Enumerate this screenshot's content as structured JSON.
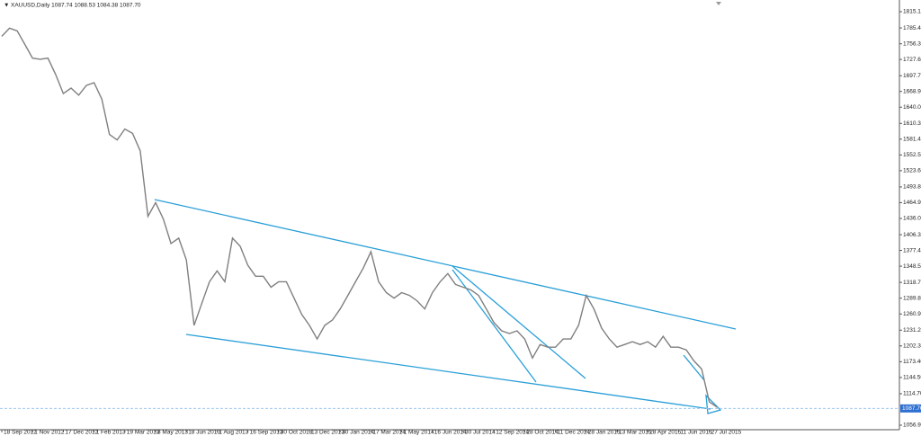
{
  "chart_data": {
    "type": "line",
    "title": "XAUUSD,Daily  1087.74 1088.53 1084.38 1087.70",
    "categories": [
      "18 Sep 2012",
      null,
      null,
      null,
      "1 Nov 2012",
      null,
      null,
      null,
      "17 Dec 2012",
      null,
      null,
      null,
      "1 Feb 2013",
      null,
      null,
      null,
      "19 Mar 2013",
      null,
      null,
      null,
      "3 May 2013",
      null,
      null,
      null,
      "18 Jun 2013",
      null,
      null,
      null,
      "1 Aug 2013",
      null,
      null,
      null,
      "16 Sep 2013",
      null,
      null,
      null,
      "30 Oct 2013",
      null,
      null,
      null,
      "13 Dec 2013",
      null,
      null,
      null,
      "30 Jan 2014",
      null,
      null,
      null,
      "17 Mar 2014",
      null,
      null,
      null,
      "1 May 2014",
      null,
      null,
      null,
      "16 Jun 2014",
      null,
      null,
      null,
      "30 Jul 2014",
      null,
      null,
      null,
      "12 Sep 2014",
      null,
      null,
      null,
      "28 Oct 2014",
      null,
      null,
      null,
      "11 Dec 2014",
      null,
      null,
      null,
      "28 Jan 2015",
      null,
      null,
      null,
      "13 Mar 2015",
      null,
      null,
      null,
      "28 Apr 2015",
      null,
      null,
      null,
      "11 Jun 2015",
      null,
      null,
      null,
      "27 Jul 2015",
      null
    ],
    "series": [
      {
        "name": "XAUUSD",
        "color": "#7f7f7f",
        "values": [
          1770,
          1785,
          1780,
          1755,
          1730,
          1728,
          1730,
          1700,
          1665,
          1675,
          1662,
          1680,
          1685,
          1655,
          1590,
          1580,
          1600,
          1592,
          1560,
          1440,
          1465,
          1435,
          1390,
          1400,
          1360,
          1240,
          1280,
          1320,
          1340,
          1320,
          1400,
          1385,
          1350,
          1330,
          1330,
          1310,
          1320,
          1320,
          1290,
          1260,
          1240,
          1215,
          1240,
          1250,
          1270,
          1295,
          1320,
          1345,
          1375,
          1320,
          1300,
          1290,
          1300,
          1295,
          1285,
          1270,
          1300,
          1320,
          1335,
          1315,
          1310,
          1305,
          1295,
          1270,
          1245,
          1230,
          1225,
          1230,
          1215,
          1180,
          1205,
          1200,
          1200,
          1215,
          1215,
          1240,
          1295,
          1270,
          1235,
          1215,
          1200,
          1205,
          1210,
          1205,
          1210,
          1200,
          1220,
          1200,
          1200,
          1195,
          1175,
          1160,
          1100,
          1090
        ]
      }
    ],
    "ylim": [
      1048.7,
      1836.6
    ],
    "yticks": [
      1815.15,
      {
        "value": 1785.4,
        "label": "1785.40"
      },
      {
        "value": 1756.3,
        "label": "1756.30"
      },
      {
        "value": 1727.6,
        "label": "1727.60"
      },
      1697.75,
      1668.95,
      1640.05,
      {
        "value": 1610.3,
        "label": "1610.30"
      },
      1581.45,
      {
        "value": 1552.5,
        "label": "1552.50"
      },
      {
        "value": 1523.6,
        "label": "1523.60"
      },
      1493.85,
      1464.95,
      1436.05,
      {
        "value": 1406.3,
        "label": "1406.30"
      },
      1377.45,
      1348.55,
      1318.75,
      1289.85,
      1260.95,
      {
        "value": 1231.2,
        "label": "1231.20"
      },
      {
        "value": 1202.3,
        "label": "1202.30"
      },
      {
        "value": 1173.4,
        "label": "1173.40"
      },
      {
        "value": 1144.5,
        "label": "1144.50"
      },
      {
        "value": 1114.7,
        "label": "1114.70"
      },
      1056.95
    ],
    "current_price": {
      "value": 1087.7,
      "label": "1087.70"
    },
    "grid": false
  }
}
